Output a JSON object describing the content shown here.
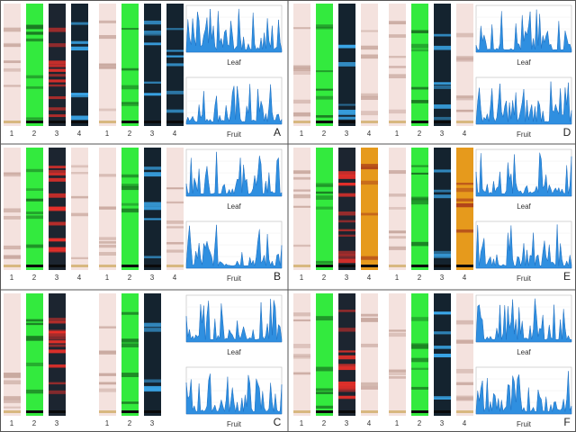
{
  "panels": [
    {
      "letter": "A",
      "left_lanes": [
        "1",
        "2",
        "3",
        "4"
      ],
      "right_lanes": [
        "1",
        "2",
        "3",
        "4"
      ],
      "plots": [
        "Leaf",
        "Fruit"
      ]
    },
    {
      "letter": "B",
      "left_lanes": [
        "1",
        "2",
        "3",
        "4"
      ],
      "right_lanes": [
        "1",
        "2",
        "3",
        "4"
      ],
      "plots": [
        "Leaf",
        "Fruit"
      ]
    },
    {
      "letter": "C",
      "left_lanes": [
        "1",
        "2",
        "3"
      ],
      "right_lanes": [
        "1",
        "2",
        "3"
      ],
      "plots": [
        "Leaf",
        "Fruit"
      ]
    },
    {
      "letter": "D",
      "left_lanes": [
        "1",
        "2",
        "3",
        "4"
      ],
      "right_lanes": [
        "1",
        "2",
        "3",
        "4"
      ],
      "plots": [
        "Leaf",
        "Fruit"
      ]
    },
    {
      "letter": "E",
      "left_lanes": [
        "1",
        "2",
        "3",
        "4"
      ],
      "right_lanes": [
        "1",
        "2",
        "3",
        "4"
      ],
      "plots": [
        "Leaf",
        "Fruit"
      ]
    },
    {
      "letter": "F",
      "left_lanes": [
        "1",
        "2",
        "3",
        "4"
      ],
      "right_lanes": [
        "1",
        "2",
        "3",
        "4"
      ],
      "plots": [
        "Leaf",
        "Fruit"
      ]
    }
  ]
}
